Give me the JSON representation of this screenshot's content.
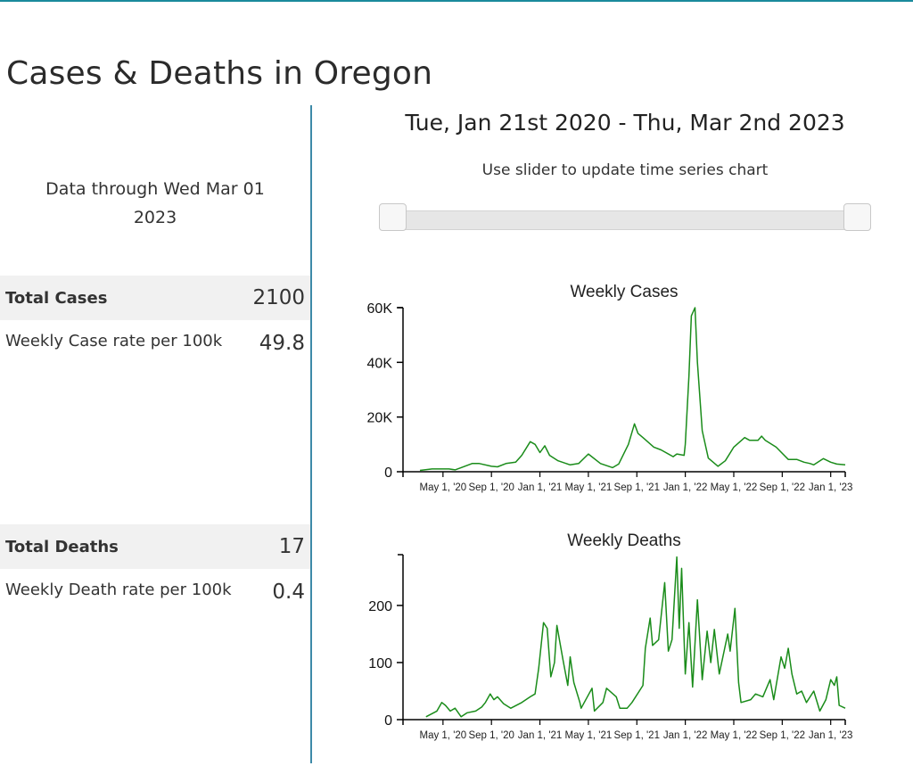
{
  "page": {
    "title": "Cases & Deaths in Oregon",
    "accent": "#1a8a9c"
  },
  "sidebar": {
    "data_through_line1": "Data through Wed Mar 01",
    "data_through_line2": "2023",
    "total_cases_label": "Total Cases",
    "total_cases_value": "2100",
    "case_rate_label": "Weekly Case rate per 100k",
    "case_rate_value": "49.8",
    "total_deaths_label": "Total Deaths",
    "total_deaths_value": "17",
    "death_rate_label": "Weekly Death rate per 100k",
    "death_rate_value": "0.4"
  },
  "main": {
    "date_range": "Tue, Jan 21st 2020 - Thu, Mar 2nd 2023",
    "slider_hint": "Use slider to update time series chart",
    "slider": {
      "start_fraction": 0,
      "end_fraction": 1
    }
  },
  "chart_data": [
    {
      "type": "line",
      "title": "Weekly Cases",
      "color": "#1a8c1a",
      "x_unit": "months since Jan 1 2020",
      "xlim": [
        0.7,
        37.2
      ],
      "ylim": [
        0,
        60000
      ],
      "yticks": [
        0,
        20000,
        40000,
        60000
      ],
      "ytick_labels": [
        "0",
        "20K",
        "40K",
        "60K"
      ],
      "xticks": [
        4,
        8,
        12,
        16,
        20,
        24,
        28,
        32,
        36
      ],
      "xtick_labels": [
        "May 1, '20",
        "Sep 1, '20",
        "Jan 1, '21",
        "May 1, '21",
        "Sep 1, '21",
        "Jan 1, '22",
        "May 1, '22",
        "Sep 1, '22",
        "Jan 1, '23"
      ],
      "points": [
        [
          2.1,
          500
        ],
        [
          3.1,
          1000
        ],
        [
          4.5,
          1000
        ],
        [
          5.0,
          700
        ],
        [
          5.5,
          1500
        ],
        [
          6.4,
          3000
        ],
        [
          7,
          3000
        ],
        [
          8,
          2000
        ],
        [
          8.5,
          1800
        ],
        [
          9.2,
          3000
        ],
        [
          10,
          3500
        ],
        [
          10.5,
          6000
        ],
        [
          11.2,
          11000
        ],
        [
          11.6,
          10000
        ],
        [
          12,
          7000
        ],
        [
          12.4,
          9500
        ],
        [
          12.8,
          6000
        ],
        [
          13.5,
          4000
        ],
        [
          14.5,
          2500
        ],
        [
          15.2,
          3000
        ],
        [
          16,
          6500
        ],
        [
          17,
          3000
        ],
        [
          18,
          1500
        ],
        [
          18.5,
          2800
        ],
        [
          19.3,
          10000
        ],
        [
          19.8,
          17500
        ],
        [
          20.1,
          14000
        ],
        [
          20.5,
          12500
        ],
        [
          21.4,
          9000
        ],
        [
          22,
          8000
        ],
        [
          23,
          5500
        ],
        [
          23.3,
          6500
        ],
        [
          23.9,
          6000
        ],
        [
          24,
          10000
        ],
        [
          24.3,
          35000
        ],
        [
          24.5,
          57000
        ],
        [
          24.8,
          60000
        ],
        [
          25.0,
          40000
        ],
        [
          25.4,
          15000
        ],
        [
          25.9,
          5000
        ],
        [
          26.7,
          2000
        ],
        [
          27.3,
          4000
        ],
        [
          28,
          9000
        ],
        [
          28.9,
          12500
        ],
        [
          29.3,
          11500
        ],
        [
          30,
          11500
        ],
        [
          30.3,
          13000
        ],
        [
          30.6,
          11500
        ],
        [
          31.5,
          9000
        ],
        [
          32.5,
          4500
        ],
        [
          33.2,
          4500
        ],
        [
          33.8,
          3500
        ],
        [
          34.3,
          3000
        ],
        [
          34.6,
          2500
        ],
        [
          35.4,
          4800
        ],
        [
          36,
          3500
        ],
        [
          36.5,
          2800
        ],
        [
          37.2,
          2500
        ]
      ]
    },
    {
      "type": "line",
      "title": "Weekly Deaths",
      "color": "#1a8c1a",
      "x_unit": "months since Jan 1 2020",
      "xlim": [
        0.7,
        37.2
      ],
      "ylim": [
        0,
        289
      ],
      "yticks": [
        0,
        100,
        200
      ],
      "ytick_labels": [
        "0",
        "100",
        "200"
      ],
      "xticks": [
        4,
        8,
        12,
        16,
        20,
        24,
        28,
        32,
        36
      ],
      "xtick_labels": [
        "May 1, '20",
        "Sep 1, '20",
        "Jan 1, '21",
        "May 1, '21",
        "Sep 1, '21",
        "Jan 1, '22",
        "May 1, '22",
        "Sep 1, '22",
        "Jan 1, '23"
      ],
      "points": [
        [
          2.6,
          5
        ],
        [
          3.5,
          15
        ],
        [
          3.9,
          30
        ],
        [
          4.2,
          25
        ],
        [
          4.6,
          15
        ],
        [
          5,
          20
        ],
        [
          5.5,
          5
        ],
        [
          6,
          12
        ],
        [
          6.7,
          15
        ],
        [
          7.2,
          22
        ],
        [
          7.5,
          30
        ],
        [
          7.9,
          45
        ],
        [
          8.2,
          35
        ],
        [
          8.5,
          40
        ],
        [
          9,
          28
        ],
        [
          9.6,
          20
        ],
        [
          10.5,
          30
        ],
        [
          11.2,
          40
        ],
        [
          11.6,
          45
        ],
        [
          11.9,
          90
        ],
        [
          12.3,
          170
        ],
        [
          12.6,
          160
        ],
        [
          12.9,
          75
        ],
        [
          13.2,
          100
        ],
        [
          13.4,
          165
        ],
        [
          13.9,
          105
        ],
        [
          14.3,
          60
        ],
        [
          14.5,
          110
        ],
        [
          14.8,
          65
        ],
        [
          15.3,
          30
        ],
        [
          15.4,
          20
        ],
        [
          16.3,
          55
        ],
        [
          16.5,
          15
        ],
        [
          17.2,
          30
        ],
        [
          17.5,
          55
        ],
        [
          18.3,
          40
        ],
        [
          18.6,
          20
        ],
        [
          19.2,
          20
        ],
        [
          19.6,
          30
        ],
        [
          20.5,
          60
        ],
        [
          20.7,
          125
        ],
        [
          21.1,
          178
        ],
        [
          21.3,
          130
        ],
        [
          21.8,
          140
        ],
        [
          22.3,
          240
        ],
        [
          22.6,
          120
        ],
        [
          22.9,
          140
        ],
        [
          23.3,
          285
        ],
        [
          23.5,
          160
        ],
        [
          23.7,
          265
        ],
        [
          24.0,
          80
        ],
        [
          24.3,
          170
        ],
        [
          24.6,
          57
        ],
        [
          25,
          210
        ],
        [
          25.4,
          70
        ],
        [
          25.8,
          155
        ],
        [
          26.1,
          100
        ],
        [
          26.4,
          158
        ],
        [
          26.8,
          80
        ],
        [
          27.5,
          150
        ],
        [
          27.7,
          120
        ],
        [
          28.1,
          195
        ],
        [
          28.4,
          65
        ],
        [
          28.6,
          30
        ],
        [
          29.4,
          35
        ],
        [
          29.8,
          45
        ],
        [
          30.4,
          40
        ],
        [
          31,
          70
        ],
        [
          31.3,
          35
        ],
        [
          31.9,
          110
        ],
        [
          32.2,
          90
        ],
        [
          32.5,
          125
        ],
        [
          32.8,
          80
        ],
        [
          33.2,
          45
        ],
        [
          33.6,
          50
        ],
        [
          34,
          30
        ],
        [
          34.6,
          50
        ],
        [
          35.1,
          15
        ],
        [
          35.6,
          35
        ],
        [
          36,
          70
        ],
        [
          36.3,
          60
        ],
        [
          36.5,
          75
        ],
        [
          36.7,
          25
        ],
        [
          37.2,
          20
        ]
      ]
    }
  ]
}
